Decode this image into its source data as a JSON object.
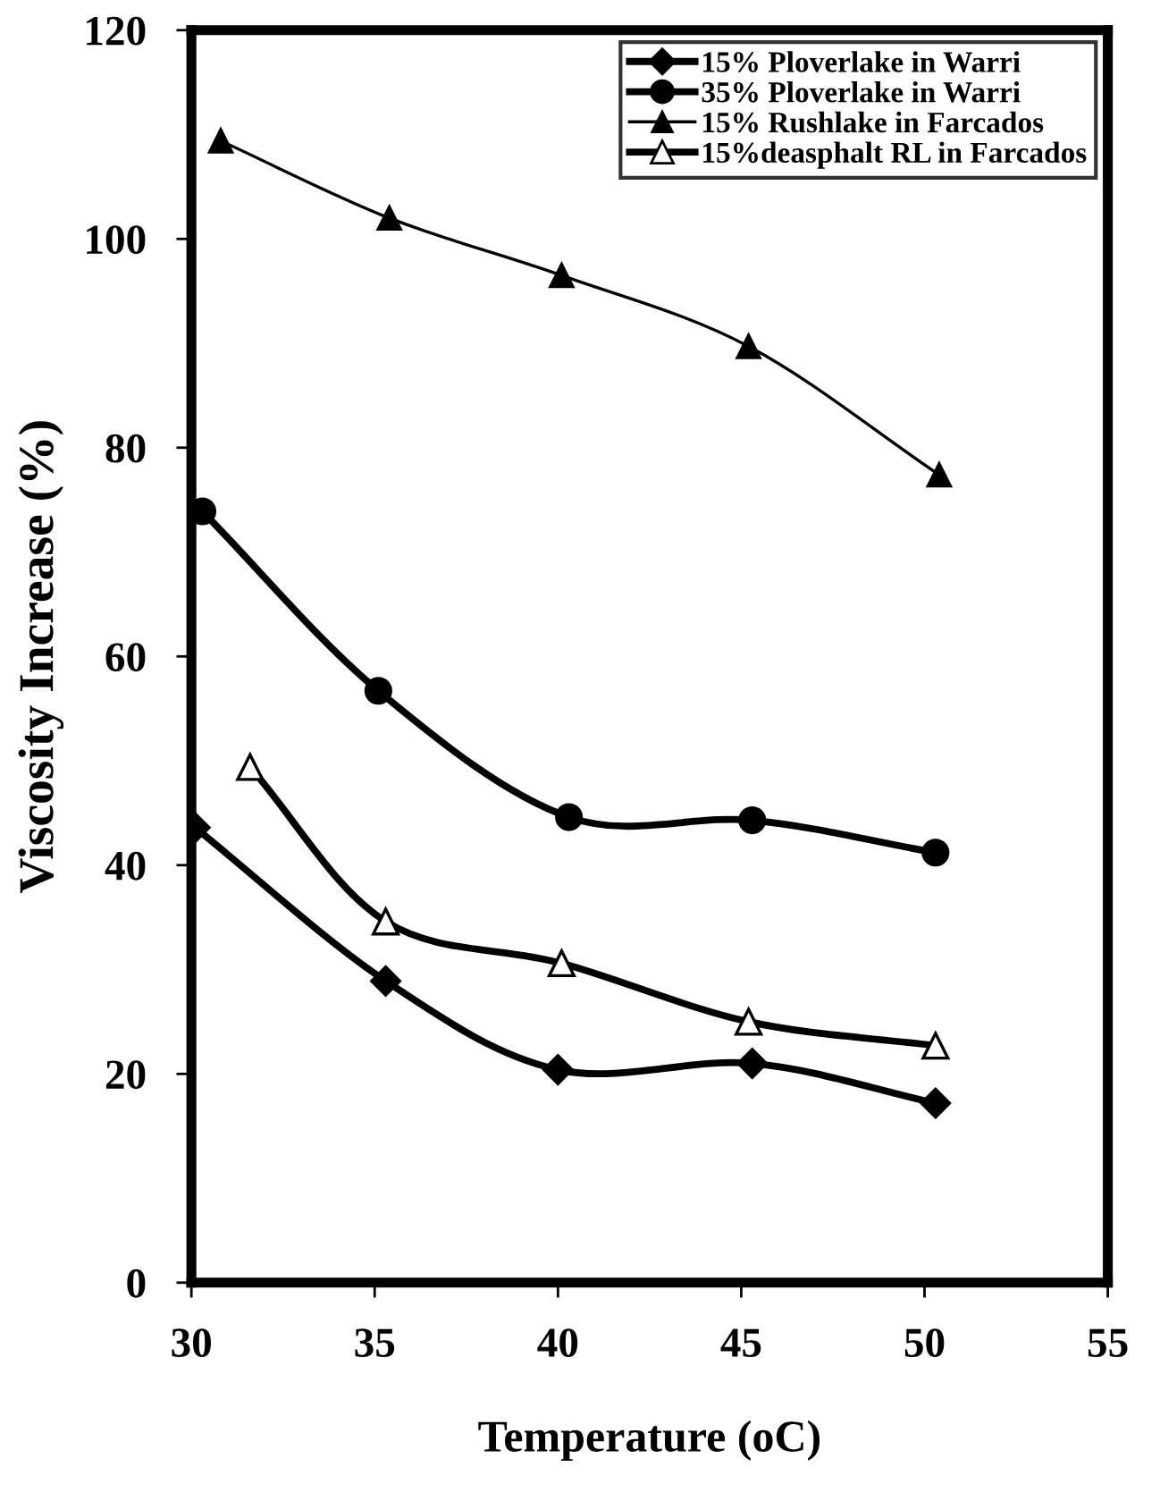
{
  "chart_data": {
    "type": "line",
    "xlabel": "Temperature (oC)",
    "ylabel": "Viscosity Increase (%)",
    "xlim": [
      30,
      55
    ],
    "xticks": [
      30,
      35,
      40,
      45,
      50,
      55
    ],
    "ylim": [
      0,
      120
    ],
    "yticks": [
      0,
      20,
      40,
      60,
      80,
      100,
      120
    ],
    "grid": false,
    "legend": "top right",
    "line_style": "solid",
    "series": [
      {
        "name": "15% Ploverlake in Warri",
        "color": "#000000",
        "marker": "diamond",
        "x": [
          30.1,
          35.3,
          40.0,
          45.3,
          50.3
        ],
        "values": [
          43.6,
          28.9,
          20.4,
          21.0,
          17.2
        ]
      },
      {
        "name": "35% Ploverlake in Warri",
        "color": "#000000",
        "marker": "circle",
        "x": [
          30.3,
          35.1,
          40.3,
          45.3,
          50.3
        ],
        "values": [
          73.9,
          56.7,
          44.6,
          44.3,
          41.2
        ]
      },
      {
        "name": "15% Rushlake in Farcados",
        "color": "#000000",
        "marker": "triangle",
        "x": [
          30.8,
          35.4,
          40.1,
          45.2,
          50.4
        ],
        "values": [
          109.4,
          102.0,
          96.5,
          89.7,
          77.4
        ]
      },
      {
        "name": "15%deasphalt RL in Farcados",
        "color": "#000000",
        "marker": "triangle",
        "x": [
          31.6,
          35.3,
          40.1,
          45.2,
          50.3
        ],
        "values": [
          49.4,
          34.6,
          30.6,
          25.0,
          22.7
        ]
      }
    ]
  }
}
